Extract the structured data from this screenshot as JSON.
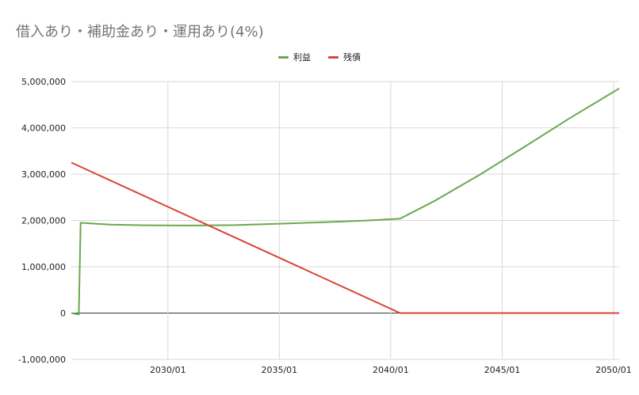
{
  "chart_data": {
    "type": "line",
    "title": "借入あり・補助金あり・運用あり(4%)",
    "xlabel": "",
    "ylabel": "",
    "x_range": [
      "2025/09",
      "2050/04"
    ],
    "x_ticks": [
      "2030/01",
      "2035/01",
      "2040/01",
      "2045/01",
      "2050/01"
    ],
    "ylim": [
      -1000000,
      5000000
    ],
    "y_ticks": [
      "-1,000,000",
      "0",
      "1,000,000",
      "2,000,000",
      "3,000,000",
      "4,000,000",
      "5,000,000"
    ],
    "y_tick_values": [
      -1000000,
      0,
      1000000,
      2000000,
      3000000,
      4000000,
      5000000
    ],
    "grid": true,
    "legend_position": "top-center",
    "series": [
      {
        "name": "利益",
        "color": "#6aa84f",
        "points": [
          [
            "2025/09",
            0
          ],
          [
            "2026/01",
            -30000
          ],
          [
            "2026/02",
            1950000
          ],
          [
            "2027/06",
            1910000
          ],
          [
            "2029/01",
            1895000
          ],
          [
            "2031/01",
            1890000
          ],
          [
            "2033/01",
            1900000
          ],
          [
            "2035/01",
            1930000
          ],
          [
            "2037/01",
            1960000
          ],
          [
            "2039/01",
            2000000
          ],
          [
            "2040/06",
            2040000
          ],
          [
            "2042/01",
            2430000
          ],
          [
            "2044/01",
            2990000
          ],
          [
            "2046/01",
            3590000
          ],
          [
            "2048/01",
            4200000
          ],
          [
            "2050/04",
            4850000
          ]
        ]
      },
      {
        "name": "残債",
        "color": "#db4437",
        "points": [
          [
            "2025/09",
            3250000
          ],
          [
            "2040/06",
            0
          ],
          [
            "2050/04",
            0
          ]
        ]
      }
    ]
  }
}
